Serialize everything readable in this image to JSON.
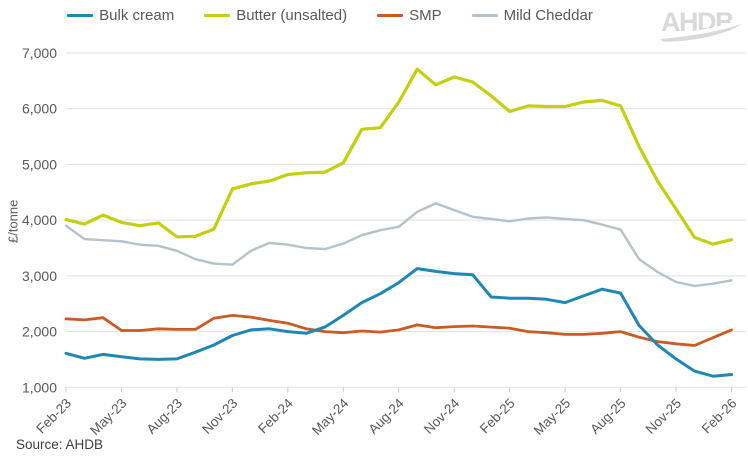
{
  "logo": {
    "text": "AHDB"
  },
  "source": {
    "text": "Source: AHDB"
  },
  "chart_data": {
    "type": "line",
    "title": "",
    "ylabel": "£/tonne",
    "ylim": [
      1000,
      7000
    ],
    "yticks": [
      "1,000",
      "2,000",
      "3,000",
      "4,000",
      "5,000",
      "6,000",
      "7,000"
    ],
    "x_tick_every": 3,
    "grid": "horizontal",
    "legend_position": "top",
    "x": [
      "Feb-23",
      "Mar-23",
      "Apr-23",
      "May-23",
      "Jun-23",
      "Jul-23",
      "Aug-23",
      "Sep-23",
      "Oct-23",
      "Nov-23",
      "Dec-23",
      "Jan-24",
      "Feb-24",
      "Mar-24",
      "Apr-24",
      "May-24",
      "Jun-24",
      "Jul-24",
      "Aug-24",
      "Sep-24",
      "Oct-24",
      "Nov-24",
      "Dec-24",
      "Jan-25",
      "Feb-25",
      "Mar-25",
      "Apr-25",
      "May-25",
      "Jun-25",
      "Jul-25",
      "Aug-25",
      "Sep-25",
      "Oct-25",
      "Nov-25",
      "Dec-25",
      "Jan-26",
      "Feb-26"
    ],
    "series": [
      {
        "name": "Bulk cream",
        "color": "#1f87b4",
        "values": [
          1610,
          1520,
          1590,
          1550,
          1510,
          1500,
          1510,
          1630,
          1760,
          1930,
          2030,
          2050,
          2000,
          1970,
          2080,
          2290,
          2520,
          2680,
          2880,
          3130,
          3080,
          3040,
          3020,
          2620,
          2600,
          2600,
          2580,
          2520,
          2640,
          2760,
          2690,
          2110,
          1760,
          1510,
          1290,
          1200,
          1230
        ]
      },
      {
        "name": "Butter (unsalted)",
        "color": "#c3cf0f",
        "values": [
          4010,
          3930,
          4090,
          3960,
          3900,
          3950,
          3700,
          3710,
          3840,
          4560,
          4650,
          4700,
          4820,
          4850,
          4860,
          5030,
          5630,
          5660,
          6120,
          6710,
          6430,
          6570,
          6480,
          6230,
          5950,
          6050,
          6040,
          6040,
          6120,
          6150,
          6050,
          5320,
          4700,
          4200,
          3690,
          3570,
          3650
        ]
      },
      {
        "name": "SMP",
        "color": "#ca5b24",
        "values": [
          2230,
          2210,
          2250,
          2020,
          2020,
          2050,
          2040,
          2040,
          2240,
          2290,
          2260,
          2200,
          2150,
          2050,
          2000,
          1980,
          2010,
          1990,
          2030,
          2120,
          2070,
          2090,
          2100,
          2080,
          2060,
          2000,
          1980,
          1950,
          1950,
          1970,
          2000,
          1900,
          1820,
          1780,
          1750,
          1890,
          2030
        ]
      },
      {
        "name": "Mild Cheddar",
        "color": "#b5c2c9",
        "values": [
          3900,
          3660,
          3640,
          3620,
          3560,
          3540,
          3450,
          3300,
          3220,
          3200,
          3450,
          3590,
          3560,
          3500,
          3480,
          3580,
          3730,
          3820,
          3880,
          4150,
          4300,
          4180,
          4060,
          4020,
          3980,
          4030,
          4050,
          4020,
          4000,
          3920,
          3830,
          3300,
          3070,
          2890,
          2820,
          2860,
          2920
        ]
      }
    ],
    "source": "Source: AHDB"
  }
}
